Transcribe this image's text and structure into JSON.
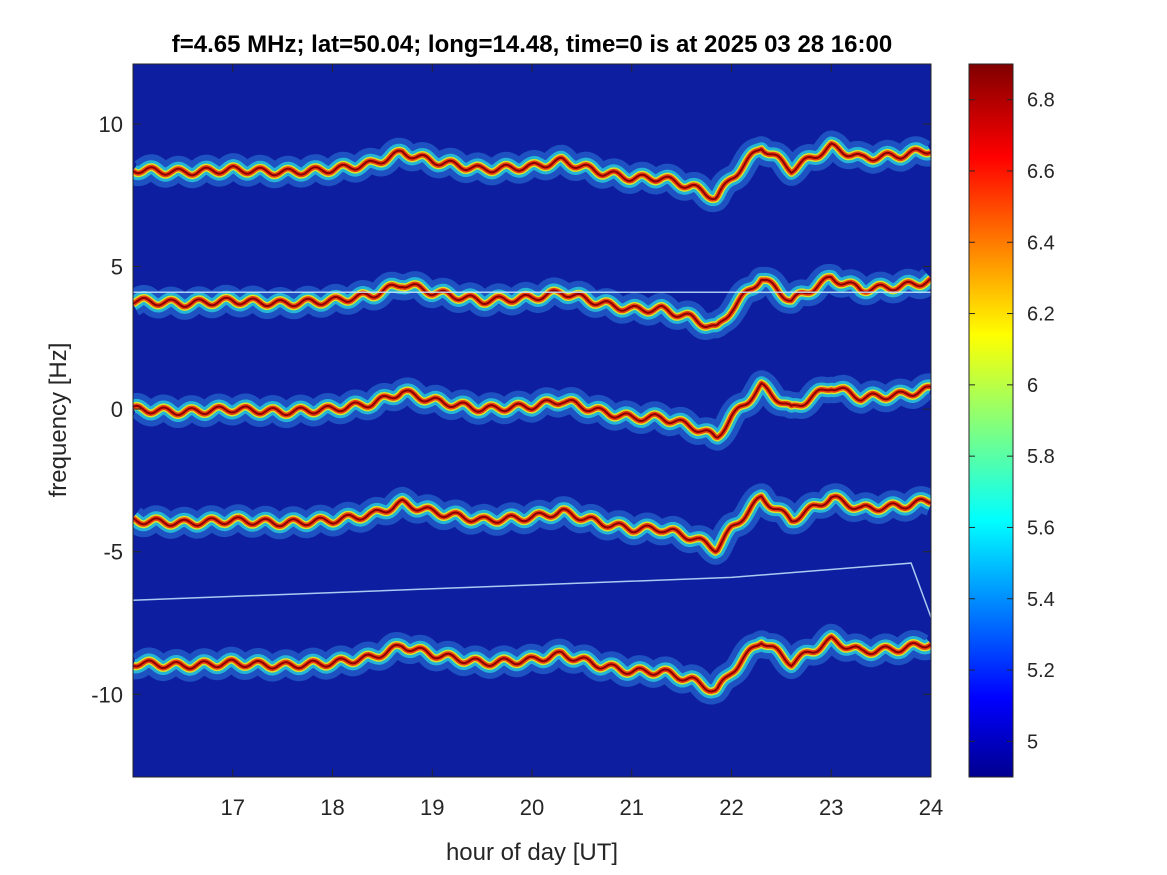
{
  "chart_data": {
    "type": "heatmap",
    "title": "f=4.65 MHz;  lat=50.04; long=14.48, time=0 is at 2025 03 28 16:00",
    "xlabel": "hour of day [UT]",
    "ylabel": "frequency [Hz]",
    "xlim": [
      16.0,
      24.0
    ],
    "ylim": [
      -12.9,
      12.1
    ],
    "x_ticks": [
      17,
      18,
      19,
      20,
      21,
      22,
      23,
      24
    ],
    "y_ticks": [
      10,
      5,
      0,
      -5,
      -10
    ],
    "colorbar": {
      "range": [
        4.9,
        6.9
      ],
      "ticks": [
        6.8,
        6.6,
        6.4,
        6.2,
        6,
        5.8,
        5.6,
        5.4,
        5.2,
        5
      ],
      "colormap": "jet"
    },
    "background_color": "#0d1fa0",
    "series": [
      {
        "offset": 8.4
      },
      {
        "offset": 3.8
      },
      {
        "offset": 0.0
      },
      {
        "offset": -3.9
      },
      {
        "offset": -8.9
      }
    ],
    "base_trend": {
      "x": [
        16.0,
        16.5,
        17.0,
        17.5,
        18.0,
        18.4,
        18.7,
        19.0,
        19.5,
        20.0,
        20.3,
        20.7,
        21.0,
        21.3,
        21.6,
        21.85,
        22.0,
        22.3,
        22.6,
        23.0,
        23.3,
        23.7,
        24.0
      ],
      "y": [
        0.0,
        -0.1,
        0.0,
        -0.1,
        0.0,
        0.2,
        0.6,
        0.3,
        0.0,
        0.1,
        0.3,
        -0.1,
        -0.3,
        -0.3,
        -0.6,
        -1.0,
        -0.3,
        0.8,
        0.0,
        0.8,
        0.4,
        0.5,
        0.7
      ]
    },
    "lines": [
      {
        "x": [
          16.0,
          19.0,
          22.0,
          23.8,
          24.0
        ],
        "y": [
          -6.7,
          -6.3,
          -5.9,
          -5.4,
          -7.3
        ]
      },
      {
        "x": [
          16.0,
          24.0
        ],
        "y": [
          4.1,
          4.1
        ]
      }
    ]
  }
}
